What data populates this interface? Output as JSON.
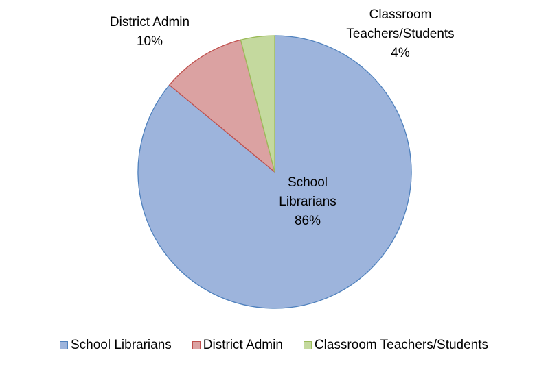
{
  "chart_data": {
    "type": "pie",
    "categories": [
      "School Librarians",
      "District Admin",
      "Classroom Teachers/Students"
    ],
    "values": [
      86,
      10,
      4
    ],
    "value_labels": [
      "86%",
      "10%",
      "4%"
    ],
    "colors": [
      "#9db4dc",
      "#dba2a2",
      "#c4d99e"
    ],
    "edge_colors": [
      "#4f81bd",
      "#c0504d",
      "#9bbb59"
    ],
    "legend": "bottom"
  }
}
